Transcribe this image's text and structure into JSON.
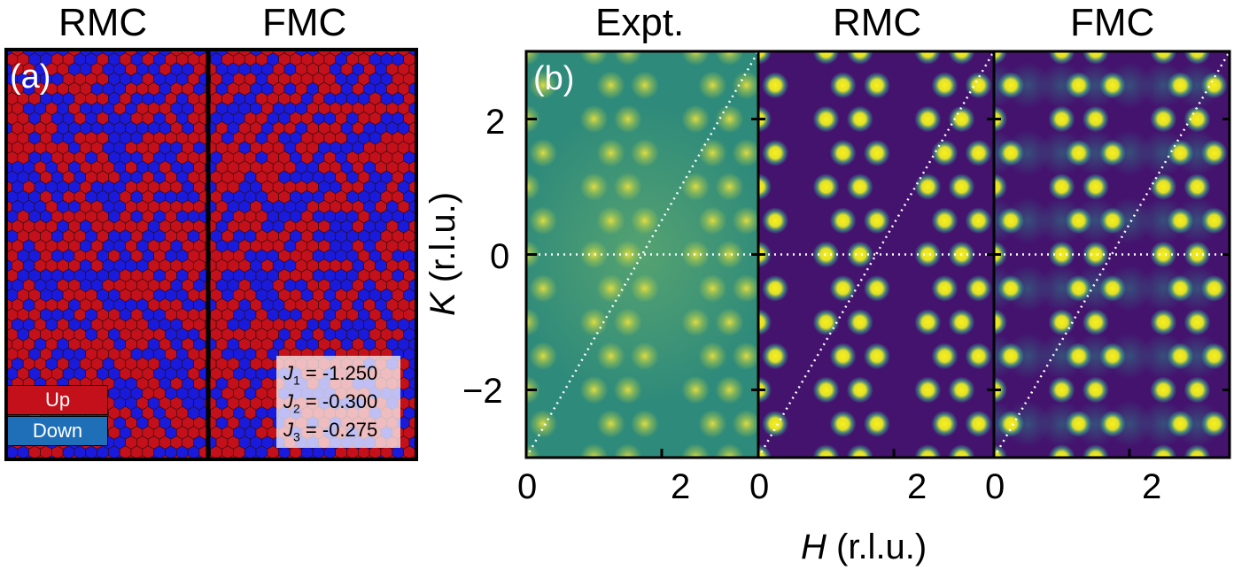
{
  "panel_a": {
    "tag": "(a)",
    "titles": [
      "RMC",
      "FMC"
    ],
    "legend": {
      "up": "Up",
      "down": "Down"
    },
    "up_color": "#c4101a",
    "down_color": "#1a1adc",
    "couplings": [
      {
        "sym": "J",
        "sub": "1",
        "value": " = -1.250"
      },
      {
        "sym": "J",
        "sub": "2",
        "value": " = -0.300"
      },
      {
        "sym": "J",
        "sub": "3",
        "value": " = -0.275"
      }
    ]
  },
  "panel_b": {
    "tag": "(b)",
    "titles": [
      "Expt.",
      "RMC",
      "FMC"
    ],
    "x_axis": {
      "label_sym": "H",
      "label_unit": " (r.l.u.)",
      "ticks": [
        "0",
        "2"
      ],
      "range": [
        0,
        3
      ]
    },
    "y_axis": {
      "label_sym": "K",
      "label_unit": " (r.l.u.)",
      "ticks": [
        "2",
        "0",
        "−2"
      ],
      "range": [
        -3,
        3
      ]
    },
    "expt_bg": "#2e8a7a",
    "sim_bg": "#44136e",
    "peak_color": "#f0e81e"
  }
}
